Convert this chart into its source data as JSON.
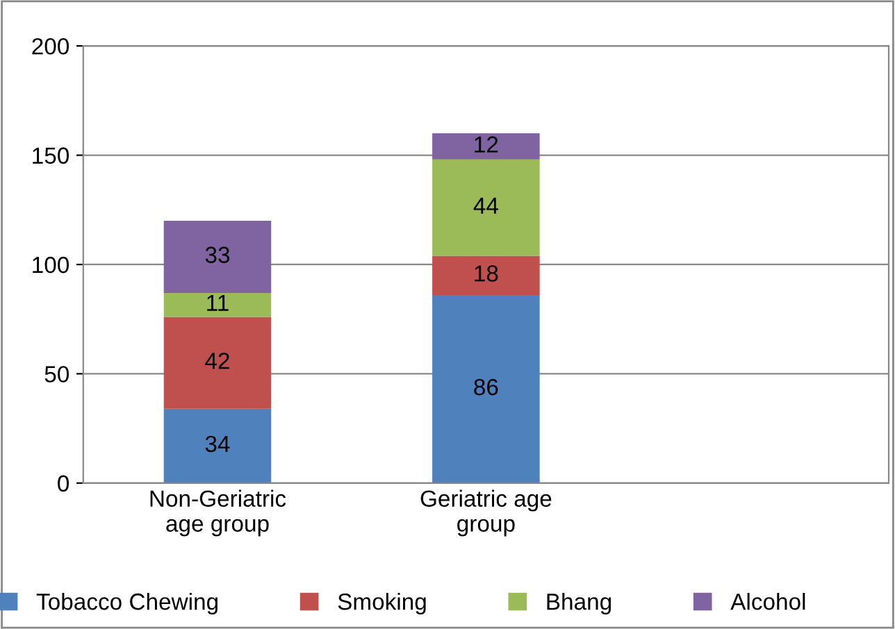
{
  "chart_data": {
    "type": "bar",
    "stacked": true,
    "categories": [
      "Non-Geriatric\nage group",
      "Geriatric age\ngroup"
    ],
    "series": [
      {
        "name": "Tobacco Chewing",
        "color": "#4f81bd",
        "values": [
          34,
          86
        ]
      },
      {
        "name": "Smoking",
        "color": "#c0504d",
        "values": [
          42,
          18
        ]
      },
      {
        "name": "Bhang",
        "color": "#9bbb59",
        "values": [
          11,
          44
        ]
      },
      {
        "name": "Alcohol",
        "color": "#8064a2",
        "values": [
          33,
          12
        ]
      }
    ],
    "ylim": [
      0,
      200
    ],
    "yticks": [
      0,
      50,
      100,
      150,
      200
    ],
    "grid": "y",
    "legend": "bottom",
    "data_labels": true
  }
}
